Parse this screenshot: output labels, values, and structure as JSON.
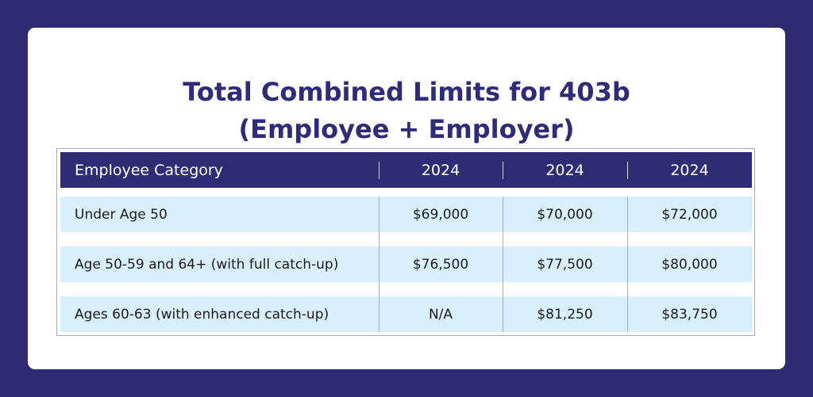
{
  "title": {
    "line1": "Total Combined Limits for 403b",
    "line2": "(Employee + Employer)"
  },
  "table": {
    "headers": [
      "Employee Category",
      "2024",
      "2024",
      "2024"
    ],
    "rows": [
      [
        "Under Age 50",
        "$69,000",
        "$70,000",
        "$72,000"
      ],
      [
        "Age 50-59 and 64+ (with full catch-up)",
        "$76,500",
        "$77,500",
        "$80,000"
      ],
      [
        "Ages 60-63 (with enhanced catch-up)",
        "N/A",
        "$81,250",
        "$83,750"
      ]
    ]
  },
  "colors": {
    "background": "#2f2b72",
    "header": "#2e2c73",
    "row": "#d8f0fb",
    "title": "#2e2b78"
  }
}
